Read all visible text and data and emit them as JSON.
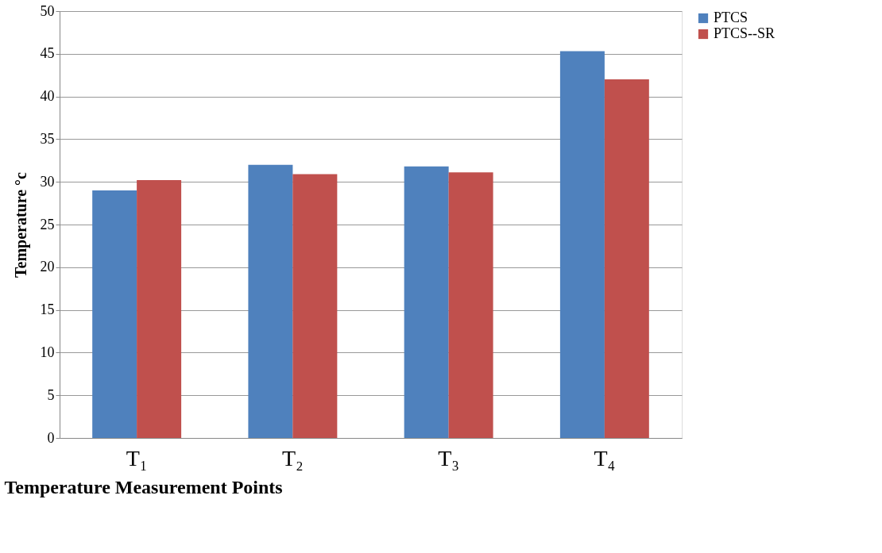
{
  "chart_data": {
    "type": "bar",
    "xlabel": "Temperature Measurement Points",
    "ylabel": "Temperature   °c",
    "categories": [
      "T₁",
      "T₂",
      "T₃",
      "T₄"
    ],
    "series": [
      {
        "name": "PTCS",
        "color": "#4f81bd",
        "values": [
          29.0,
          32.0,
          31.8,
          45.3
        ]
      },
      {
        "name": "PTCS--SR",
        "color": "#c0504d",
        "values": [
          30.2,
          30.9,
          31.1,
          42.0
        ]
      }
    ],
    "ylim": [
      0,
      50
    ],
    "yticks": [
      0,
      5,
      10,
      15,
      20,
      25,
      30,
      35,
      40,
      45,
      50
    ],
    "grid": "y",
    "legend": "right"
  }
}
